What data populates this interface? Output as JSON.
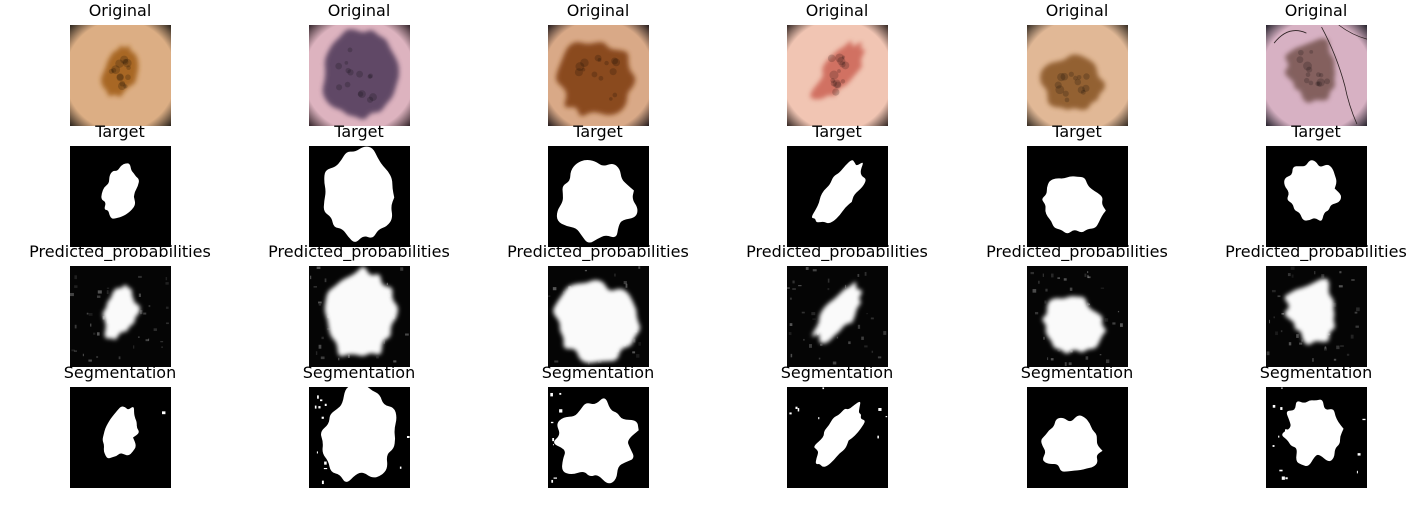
{
  "figure": {
    "rows": [
      {
        "kind": "original",
        "title": "Original"
      },
      {
        "kind": "target",
        "title": "Target"
      },
      {
        "kind": "probabilities",
        "title": "Predicted_probabilities"
      },
      {
        "kind": "segmentation",
        "title": "Segmentation"
      }
    ],
    "samples": [
      {
        "id": "sample-1",
        "skin_color": "#dcae84",
        "lesion_color": "#a4621f",
        "vignette": "#302820"
      },
      {
        "id": "sample-2",
        "skin_color": "#ddb3bf",
        "lesion_color": "#56415e",
        "vignette": "#3a2a30"
      },
      {
        "id": "sample-3",
        "skin_color": "#d9a987",
        "lesion_color": "#844219",
        "vignette": "#2a2020"
      },
      {
        "id": "sample-4",
        "skin_color": "#f1c5b3",
        "lesion_color": "#cf6a5c",
        "vignette": "#3a2c28"
      },
      {
        "id": "sample-5",
        "skin_color": "#e1b896",
        "lesion_color": "#8d5a2b",
        "vignette": "#3a3026"
      },
      {
        "id": "sample-6",
        "skin_color": "#d7b1c3",
        "lesion_color": "#7d5a57",
        "vignette": "#2a2630"
      }
    ]
  }
}
